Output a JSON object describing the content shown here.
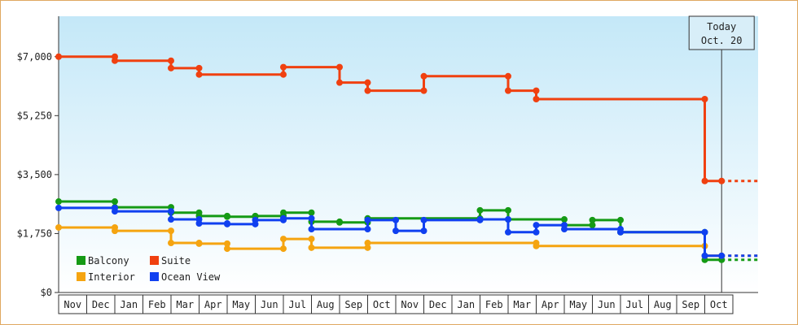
{
  "chart_data": {
    "type": "step",
    "categories": [
      "Nov",
      "Dec",
      "Jan",
      "Feb",
      "Mar",
      "Apr",
      "May",
      "Jun",
      "Jul",
      "Aug",
      "Sep",
      "Oct",
      "Nov",
      "Dec",
      "Jan",
      "Feb",
      "Mar",
      "Apr",
      "May",
      "Jun",
      "Jul",
      "Aug",
      "Sep",
      "Oct"
    ],
    "series": [
      {
        "name": "Balcony",
        "color": "#159a15",
        "values": [
          2700,
          2700,
          2530,
          2530,
          2370,
          2270,
          2250,
          2270,
          2370,
          2100,
          2080,
          2200,
          2200,
          2200,
          2200,
          2440,
          2170,
          2170,
          2000,
          2150,
          1790,
          1790,
          1790,
          970
        ]
      },
      {
        "name": "Suite",
        "color": "#f04010",
        "values": [
          7000,
          7000,
          6880,
          6880,
          6660,
          6470,
          6470,
          6470,
          6690,
          6690,
          6230,
          5990,
          5990,
          6420,
          6420,
          6420,
          5990,
          5740,
          5740,
          5740,
          5740,
          5740,
          5740,
          3310
        ]
      },
      {
        "name": "Interior",
        "color": "#f5a410",
        "values": [
          1930,
          1930,
          1830,
          1830,
          1470,
          1450,
          1300,
          1300,
          1590,
          1330,
          1330,
          1470,
          1470,
          1470,
          1470,
          1470,
          1470,
          1380,
          1380,
          1380,
          1380,
          1380,
          1380,
          1090
        ]
      },
      {
        "name": "Ocean View",
        "color": "#1040f0",
        "values": [
          2510,
          2510,
          2410,
          2410,
          2170,
          2050,
          2030,
          2150,
          2200,
          1880,
          1880,
          2150,
          1830,
          2150,
          2150,
          2170,
          1790,
          2000,
          1880,
          1880,
          1790,
          1790,
          1790,
          1090
        ]
      }
    ],
    "ylim": [
      0,
      8200
    ],
    "yticks": [
      {
        "value": 0,
        "label": "$0"
      },
      {
        "value": 1750,
        "label": "$1,750"
      },
      {
        "value": 3500,
        "label": "$3,500"
      },
      {
        "value": 5250,
        "label": "$5,250"
      },
      {
        "value": 7000,
        "label": "$7,000"
      }
    ],
    "annotation": [
      "Today",
      "Oct. 20"
    ],
    "legend": "lower-left"
  }
}
